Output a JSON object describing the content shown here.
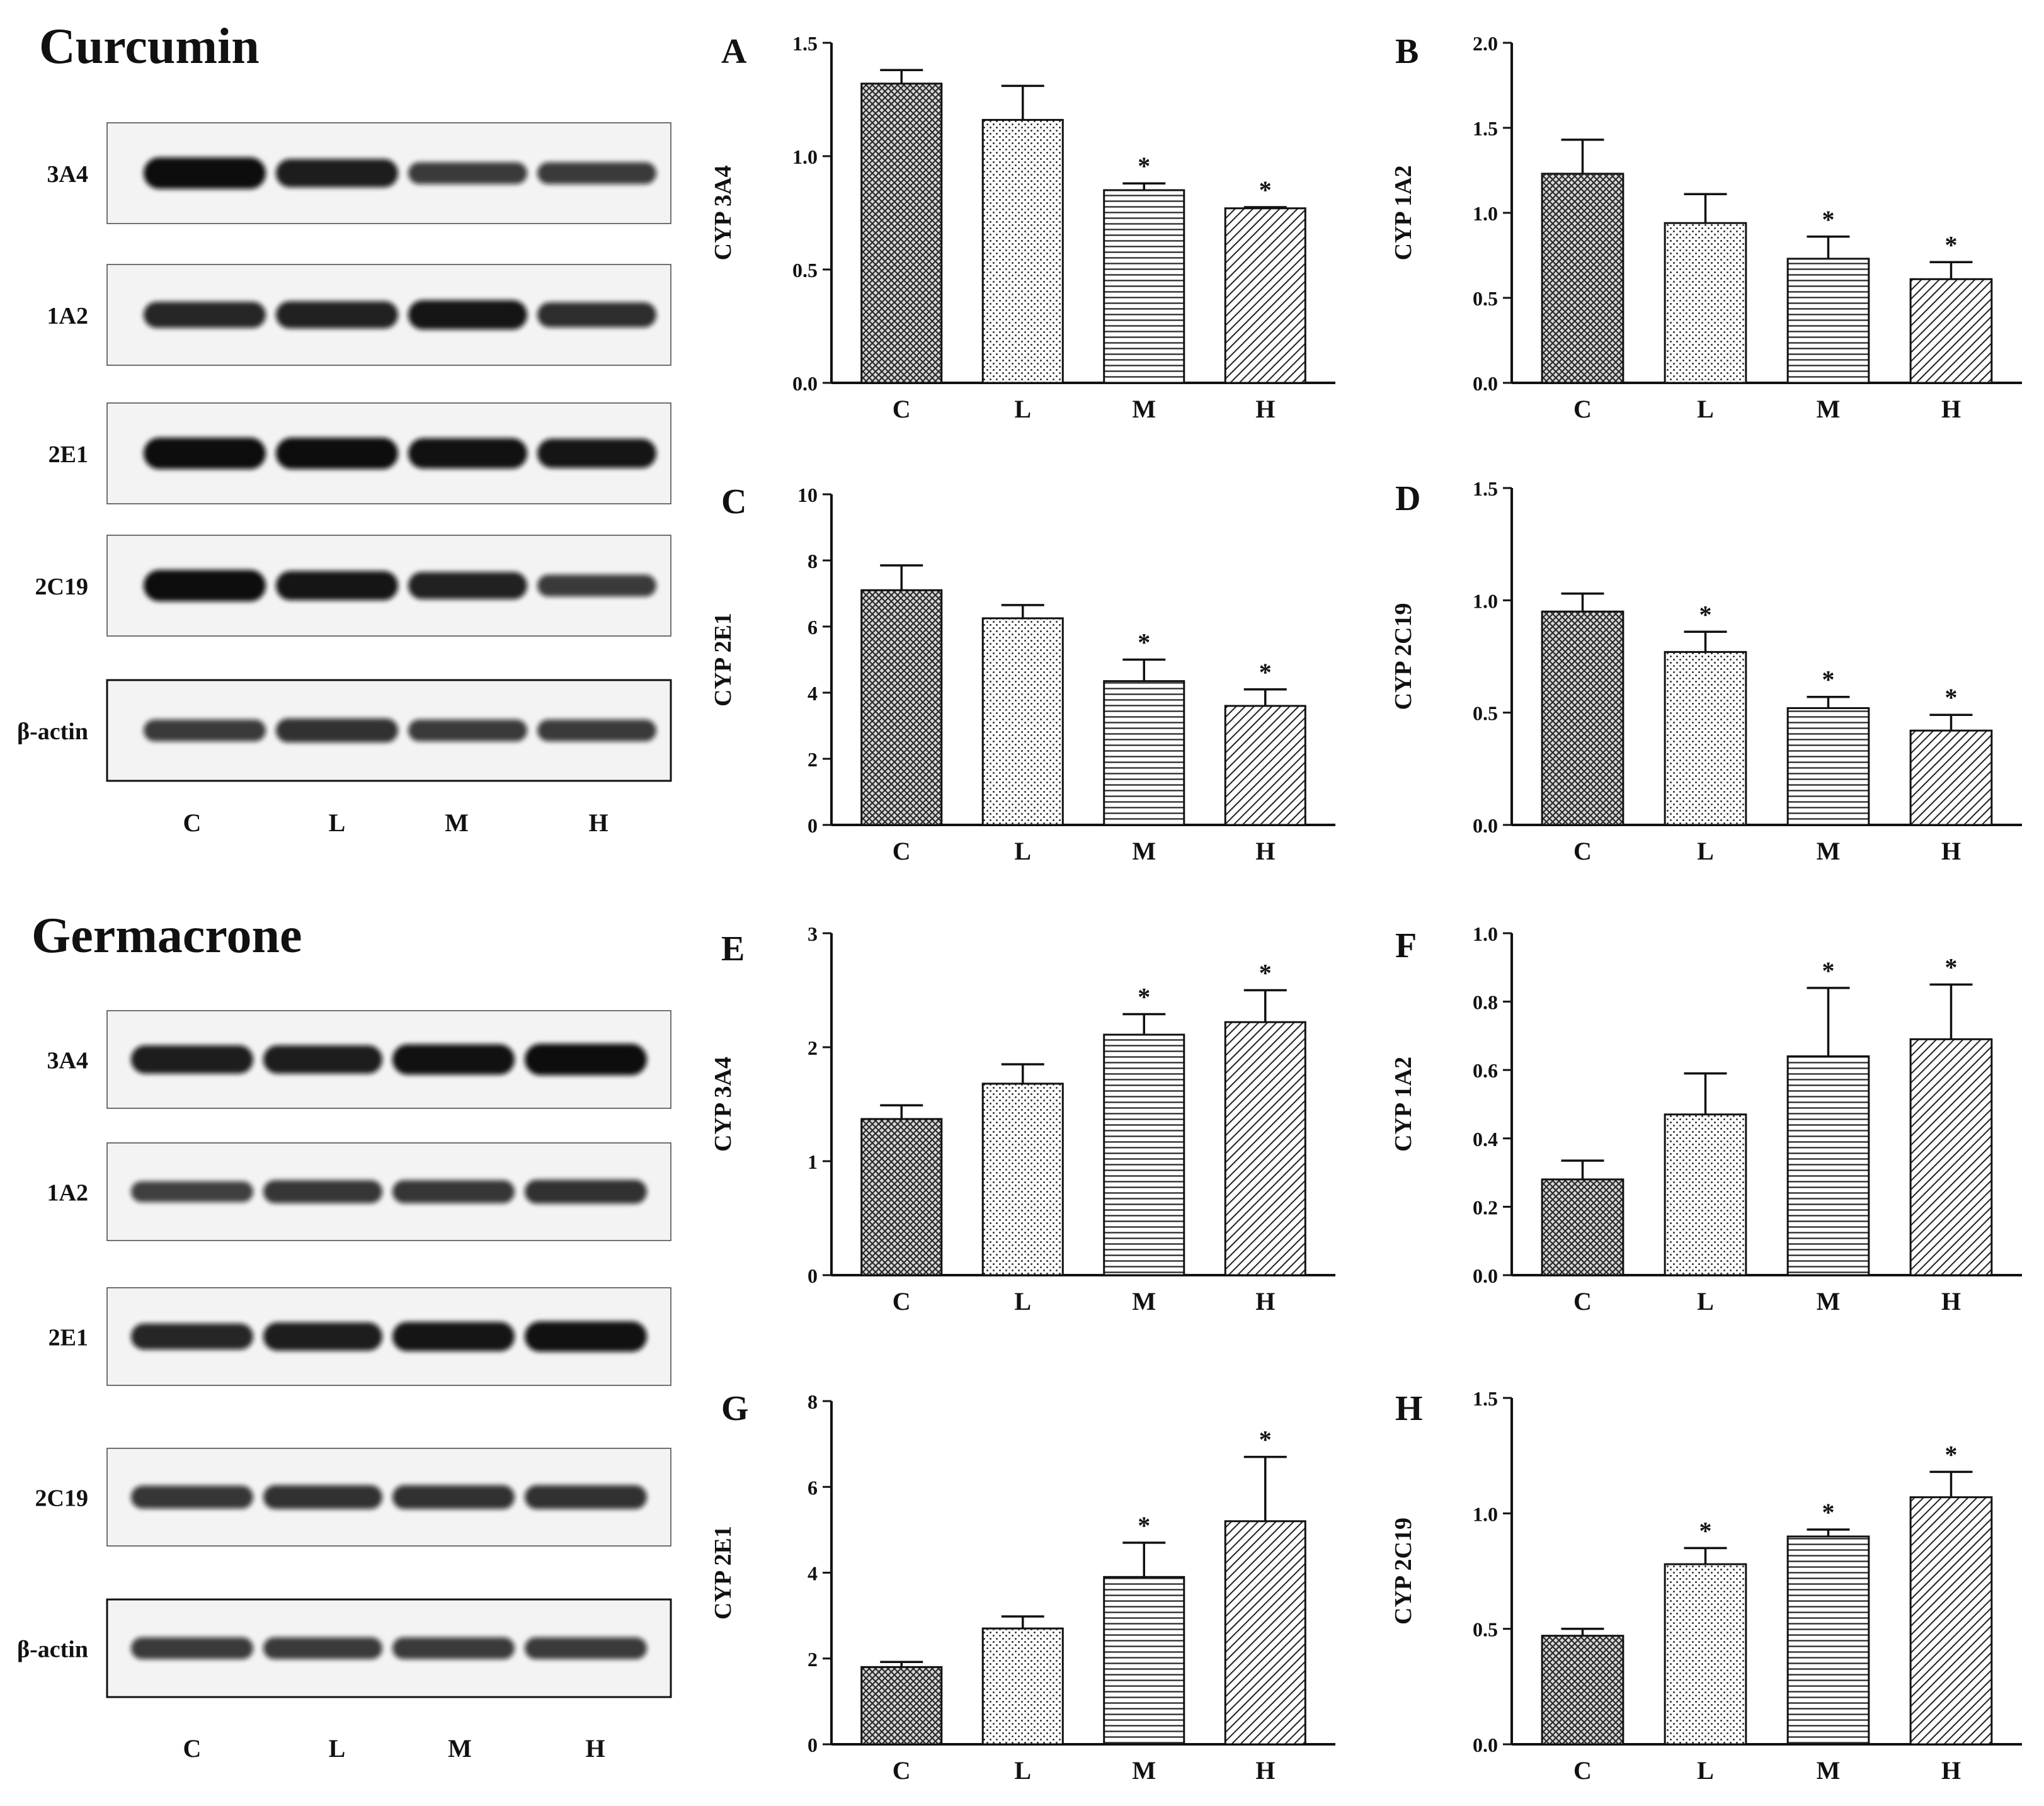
{
  "headings": {
    "top": "Curcumin",
    "bottom": "Germacrone"
  },
  "colors": {
    "ink": "#111111",
    "band": "#0c0c0c",
    "blot_bg": "#f3f3f3",
    "frame": "#444444"
  },
  "blots": {
    "curcumin": {
      "rows": [
        "3A4",
        "1A2",
        "2E1",
        "2C19",
        "β-actin"
      ],
      "lanes": [
        "C",
        "L",
        "M",
        "H"
      ],
      "intensity": [
        [
          1.0,
          0.85,
          0.55,
          0.55
        ],
        [
          0.75,
          0.8,
          0.9,
          0.7
        ],
        [
          1.0,
          1.0,
          0.95,
          0.9
        ],
        [
          1.0,
          0.9,
          0.8,
          0.55
        ],
        [
          0.55,
          0.65,
          0.55,
          0.55
        ]
      ]
    },
    "germacrone": {
      "rows": [
        "3A4",
        "1A2",
        "2E1",
        "2C19",
        "β-actin"
      ],
      "lanes": [
        "C",
        "L",
        "M",
        "H"
      ],
      "intensity": [
        [
          0.85,
          0.85,
          0.95,
          1.0
        ],
        [
          0.5,
          0.6,
          0.6,
          0.65
        ],
        [
          0.75,
          0.85,
          0.9,
          0.95
        ],
        [
          0.6,
          0.65,
          0.65,
          0.65
        ],
        [
          0.55,
          0.55,
          0.55,
          0.55
        ]
      ]
    }
  },
  "chart_data": [
    {
      "panel": "A",
      "type": "bar",
      "categories": [
        "C",
        "L",
        "M",
        "H"
      ],
      "values": [
        1.32,
        1.16,
        0.85,
        0.77
      ],
      "errors": [
        0.06,
        0.15,
        0.03,
        0.005
      ],
      "significant": [
        false,
        false,
        true,
        true
      ],
      "ylabel": "CYP 3A4",
      "ylim": [
        0,
        1.5
      ],
      "ticks": [
        "0.0",
        "0.5",
        "1.0",
        "1.5"
      ]
    },
    {
      "panel": "B",
      "type": "bar",
      "categories": [
        "C",
        "L",
        "M",
        "H"
      ],
      "values": [
        1.23,
        0.94,
        0.73,
        0.61
      ],
      "errors": [
        0.2,
        0.17,
        0.13,
        0.1
      ],
      "significant": [
        false,
        false,
        true,
        true
      ],
      "ylabel": "CYP 1A2",
      "ylim": [
        0,
        2.0
      ],
      "ticks": [
        "0.0",
        "0.5",
        "1.0",
        "1.5",
        "2.0"
      ]
    },
    {
      "panel": "C",
      "type": "bar",
      "categories": [
        "C",
        "L",
        "M",
        "H"
      ],
      "values": [
        7.1,
        6.25,
        4.35,
        3.6
      ],
      "errors": [
        0.75,
        0.4,
        0.65,
        0.5
      ],
      "significant": [
        false,
        false,
        true,
        true
      ],
      "ylabel": "CYP 2E1",
      "ylim": [
        0,
        10
      ],
      "ticks": [
        "0",
        "2",
        "4",
        "6",
        "8",
        "10"
      ]
    },
    {
      "panel": "D",
      "type": "bar",
      "categories": [
        "C",
        "L",
        "M",
        "H"
      ],
      "values": [
        0.95,
        0.77,
        0.52,
        0.42
      ],
      "errors": [
        0.08,
        0.09,
        0.05,
        0.07
      ],
      "significant": [
        false,
        true,
        true,
        true
      ],
      "ylabel": "CYP 2C19",
      "ylim": [
        0,
        1.5
      ],
      "ticks": [
        "0.0",
        "0.5",
        "1.0",
        "1.5"
      ]
    },
    {
      "panel": "E",
      "type": "bar",
      "categories": [
        "C",
        "L",
        "M",
        "H"
      ],
      "values": [
        1.37,
        1.68,
        2.11,
        2.22
      ],
      "errors": [
        0.12,
        0.17,
        0.18,
        0.28
      ],
      "significant": [
        false,
        false,
        true,
        true
      ],
      "ylabel": "CYP 3A4",
      "ylim": [
        0,
        3
      ],
      "ticks": [
        "0",
        "1",
        "2",
        "3"
      ]
    },
    {
      "panel": "F",
      "type": "bar",
      "categories": [
        "C",
        "L",
        "M",
        "H"
      ],
      "values": [
        0.28,
        0.47,
        0.64,
        0.69
      ],
      "errors": [
        0.055,
        0.12,
        0.2,
        0.16
      ],
      "significant": [
        false,
        false,
        true,
        true
      ],
      "ylabel": "CYP 1A2",
      "ylim": [
        0,
        1.0
      ],
      "ticks": [
        "0.0",
        "0.2",
        "0.4",
        "0.6",
        "0.8",
        "1.0"
      ]
    },
    {
      "panel": "G",
      "type": "bar",
      "categories": [
        "C",
        "L",
        "M",
        "H"
      ],
      "values": [
        1.8,
        2.7,
        3.9,
        5.2
      ],
      "errors": [
        0.12,
        0.28,
        0.8,
        1.5
      ],
      "significant": [
        false,
        false,
        true,
        true
      ],
      "ylabel": "CYP 2E1",
      "ylim": [
        0,
        8
      ],
      "ticks": [
        "0",
        "2",
        "4",
        "6",
        "8"
      ]
    },
    {
      "panel": "H",
      "type": "bar",
      "categories": [
        "C",
        "L",
        "M",
        "H"
      ],
      "values": [
        0.47,
        0.78,
        0.9,
        1.07
      ],
      "errors": [
        0.03,
        0.07,
        0.03,
        0.11
      ],
      "significant": [
        false,
        true,
        true,
        true
      ],
      "ylabel": "CYP 2C19",
      "ylim": [
        0,
        1.5
      ],
      "ticks": [
        "0.0",
        "0.5",
        "1.0",
        "1.5"
      ]
    }
  ],
  "significance_marker": "*"
}
